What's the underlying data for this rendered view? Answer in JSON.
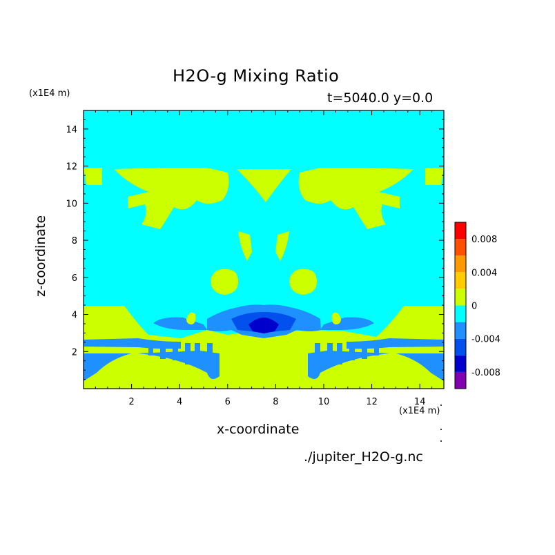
{
  "chart_data": {
    "type": "heatmap",
    "title": "H2O-g Mixing Ratio",
    "subtitle": "t=5040.0 y=0.0",
    "xlabel": "x-coordinate",
    "ylabel": "z-coordinate",
    "x_scale_label": "(x1E4 m)",
    "z_scale_label": "(x1E4 m)",
    "xlim": [
      0,
      15
    ],
    "ylim": [
      0,
      15
    ],
    "x_ticks": [
      2,
      4,
      6,
      8,
      10,
      12,
      14
    ],
    "y_ticks": [
      2,
      4,
      6,
      8,
      10,
      12,
      14
    ],
    "colorbar": {
      "levels": [
        -0.01,
        -0.008,
        -0.006,
        -0.004,
        -0.002,
        0,
        0.002,
        0.004,
        0.006,
        0.008,
        0.01
      ],
      "colors": [
        "#8000b0",
        "#0000cc",
        "#0050ee",
        "#1e90ff",
        "#00ffff",
        "#ccff00",
        "#ffcc00",
        "#ff9900",
        "#ff5000",
        "#ff0000",
        "#ffaaaa"
      ],
      "tick_labels": [
        "-0.008",
        "-0.004",
        "0",
        "0.004",
        "0.008"
      ],
      "tick_values": [
        -0.008,
        -0.004,
        0,
        0.004,
        0.008
      ]
    },
    "background_color": "#00ffff"
  },
  "footer": "./jupiter_H2O-g.nc"
}
